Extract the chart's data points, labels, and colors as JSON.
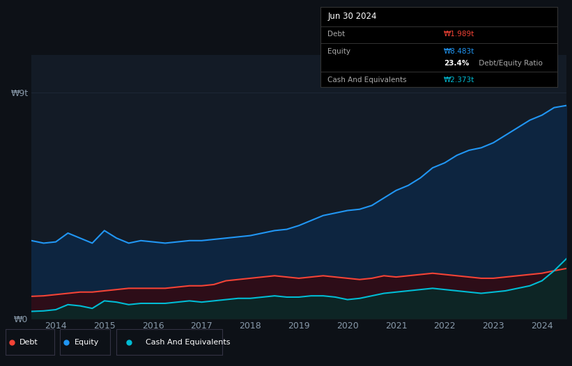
{
  "background_color": "#0d1117",
  "plot_bg_color": "#131b26",
  "grid_color": "#1e2a3a",
  "ylabel_left": "₩9t",
  "ylabel_zero": "₩0",
  "x_years": [
    2013.5,
    2013.75,
    2014.0,
    2014.25,
    2014.5,
    2014.75,
    2015.0,
    2015.25,
    2015.5,
    2015.75,
    2016.0,
    2016.25,
    2016.5,
    2016.75,
    2017.0,
    2017.25,
    2017.5,
    2017.75,
    2018.0,
    2018.25,
    2018.5,
    2018.75,
    2019.0,
    2019.25,
    2019.5,
    2019.75,
    2020.0,
    2020.25,
    2020.5,
    2020.75,
    2021.0,
    2021.25,
    2021.5,
    2021.75,
    2022.0,
    2022.25,
    2022.5,
    2022.75,
    2023.0,
    2023.25,
    2023.5,
    2023.75,
    2024.0,
    2024.25,
    2024.5
  ],
  "equity": [
    3.1,
    3.0,
    3.05,
    3.4,
    3.2,
    3.0,
    3.5,
    3.2,
    3.0,
    3.1,
    3.05,
    3.0,
    3.05,
    3.1,
    3.1,
    3.15,
    3.2,
    3.25,
    3.3,
    3.4,
    3.5,
    3.55,
    3.7,
    3.9,
    4.1,
    4.2,
    4.3,
    4.35,
    4.5,
    4.8,
    5.1,
    5.3,
    5.6,
    6.0,
    6.2,
    6.5,
    6.7,
    6.8,
    7.0,
    7.3,
    7.6,
    7.9,
    8.1,
    8.4,
    8.483
  ],
  "debt": [
    0.88,
    0.9,
    0.95,
    1.0,
    1.05,
    1.05,
    1.1,
    1.15,
    1.2,
    1.2,
    1.2,
    1.2,
    1.25,
    1.3,
    1.3,
    1.35,
    1.5,
    1.55,
    1.6,
    1.65,
    1.7,
    1.65,
    1.6,
    1.65,
    1.7,
    1.65,
    1.6,
    1.55,
    1.6,
    1.7,
    1.65,
    1.7,
    1.75,
    1.8,
    1.75,
    1.7,
    1.65,
    1.6,
    1.6,
    1.65,
    1.7,
    1.75,
    1.8,
    1.9,
    1.989
  ],
  "cash": [
    0.28,
    0.3,
    0.35,
    0.55,
    0.5,
    0.4,
    0.7,
    0.65,
    0.55,
    0.6,
    0.6,
    0.6,
    0.65,
    0.7,
    0.65,
    0.7,
    0.75,
    0.8,
    0.8,
    0.85,
    0.9,
    0.85,
    0.85,
    0.9,
    0.9,
    0.85,
    0.75,
    0.8,
    0.9,
    1.0,
    1.05,
    1.1,
    1.15,
    1.2,
    1.15,
    1.1,
    1.05,
    1.0,
    1.05,
    1.1,
    1.2,
    1.3,
    1.5,
    1.9,
    2.373
  ],
  "equity_color": "#2196f3",
  "debt_color": "#f44336",
  "cash_color": "#00bcd4",
  "equity_fill": "#0d2540",
  "debt_fill": "#2d0d18",
  "cash_fill": "#0d2525",
  "x_tick_labels": [
    "2014",
    "2015",
    "2016",
    "2017",
    "2018",
    "2019",
    "2020",
    "2021",
    "2022",
    "2023",
    "2024"
  ],
  "x_tick_positions": [
    2014,
    2015,
    2016,
    2017,
    2018,
    2019,
    2020,
    2021,
    2022,
    2023,
    2024
  ],
  "ylim": [
    0,
    10.5
  ],
  "tooltip_title": "Jun 30 2024",
  "tooltip_debt_label": "Debt",
  "tooltip_debt_value": "₩1.989t",
  "tooltip_equity_label": "Equity",
  "tooltip_equity_value": "₩8.483t",
  "tooltip_ratio_value": "23.4%",
  "tooltip_ratio_label": " Debt/Equity Ratio",
  "tooltip_cash_label": "Cash And Equivalents",
  "tooltip_cash_value": "₩2.373t",
  "legend_debt": "Debt",
  "legend_equity": "Equity",
  "legend_cash": "Cash And Equivalents"
}
